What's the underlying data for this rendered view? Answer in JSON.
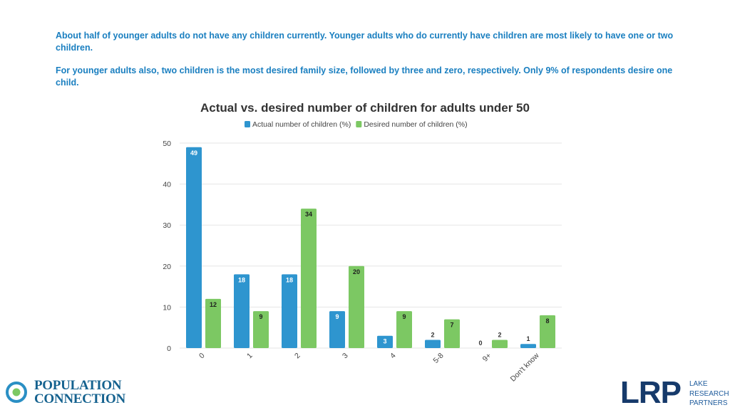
{
  "intro": {
    "paragraph1": "About half of younger adults do not have any children currently. Younger adults who do currently have children are most likely to have one or two children.",
    "paragraph2": "For younger adults also, two children is the most desired family size, followed by three and zero, respectively. Only 9% of respondents desire one child."
  },
  "chart_data": {
    "type": "bar",
    "title": "Actual vs. desired number of children for adults under 50",
    "categories": [
      "0",
      "1",
      "2",
      "3",
      "4",
      "5-8",
      "9+",
      "Don't know"
    ],
    "series": [
      {
        "name": "Actual number of children (%)",
        "color": "#2e95cf",
        "values": [
          49,
          18,
          18,
          9,
          3,
          2,
          0,
          1
        ]
      },
      {
        "name": "Desired number of children (%)",
        "color": "#7cc863",
        "values": [
          12,
          9,
          34,
          20,
          9,
          7,
          2,
          8
        ]
      }
    ],
    "yticks": [
      0,
      10,
      20,
      30,
      40,
      50
    ],
    "ylim": [
      0,
      50
    ],
    "xlabel": "",
    "ylabel": "",
    "legend_position": "top",
    "grid": true
  },
  "logos": {
    "left": "POPULATION CONNECTION",
    "right_mark": "LRP",
    "right_text": [
      "LAKE",
      "RESEARCH",
      "PARTNERS"
    ]
  },
  "colors": {
    "accent_blue": "#1a7fc0",
    "actual": "#2e95cf",
    "desired": "#7cc863",
    "lrp_navy": "#163a6b"
  }
}
